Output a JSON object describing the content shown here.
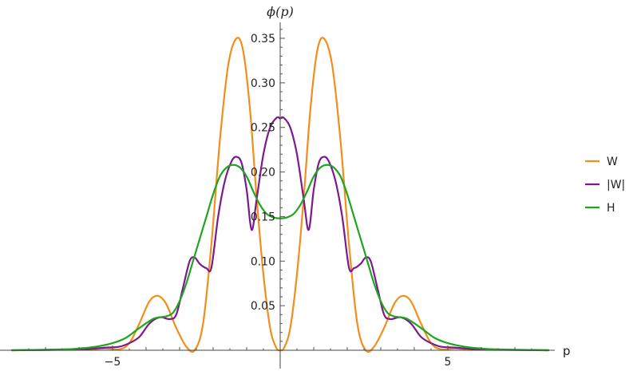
{
  "chart_data": {
    "type": "line",
    "title": "",
    "xlabel": "p",
    "ylabel": "ϕ(p)",
    "xlim": [
      -8,
      8
    ],
    "ylim": [
      0,
      0.37
    ],
    "x_major_ticks": [
      -5,
      5
    ],
    "x_major_tick_labels": [
      "−5",
      "5"
    ],
    "y_major_ticks": [
      0.05,
      0.1,
      0.15,
      0.2,
      0.25,
      0.3,
      0.35
    ],
    "y_major_tick_labels": [
      "0.05",
      "0.10",
      "0.15",
      "0.20",
      "0.25",
      "0.30",
      "0.35"
    ],
    "grid": false,
    "legend_position": "right",
    "series": [
      {
        "name": "W",
        "color": "#f28e1c",
        "points": [
          [
            -8,
            0
          ],
          [
            -6,
            0.0005
          ],
          [
            -5.2,
            0.002
          ],
          [
            -4.8,
            0.001
          ],
          [
            -4.5,
            0.008
          ],
          [
            -4.2,
            0.03
          ],
          [
            -3.9,
            0.055
          ],
          [
            -3.65,
            0.061
          ],
          [
            -3.4,
            0.052
          ],
          [
            -3.1,
            0.025
          ],
          [
            -2.8,
            0.004
          ],
          [
            -2.55,
            0.0
          ],
          [
            -2.3,
            0.03
          ],
          [
            -2.05,
            0.12
          ],
          [
            -1.8,
            0.235
          ],
          [
            -1.55,
            0.32
          ],
          [
            -1.3,
            0.35
          ],
          [
            -1.1,
            0.335
          ],
          [
            -0.9,
            0.27
          ],
          [
            -0.7,
            0.17
          ],
          [
            -0.5,
            0.085
          ],
          [
            -0.3,
            0.025
          ],
          [
            -0.12,
            0.003
          ],
          [
            0,
            0.0
          ],
          [
            0.12,
            0.003
          ],
          [
            0.3,
            0.025
          ],
          [
            0.5,
            0.085
          ],
          [
            0.7,
            0.17
          ],
          [
            0.9,
            0.27
          ],
          [
            1.1,
            0.335
          ],
          [
            1.3,
            0.35
          ],
          [
            1.55,
            0.32
          ],
          [
            1.8,
            0.235
          ],
          [
            2.05,
            0.12
          ],
          [
            2.3,
            0.03
          ],
          [
            2.55,
            0.0
          ],
          [
            2.8,
            0.004
          ],
          [
            3.1,
            0.025
          ],
          [
            3.4,
            0.052
          ],
          [
            3.65,
            0.061
          ],
          [
            3.9,
            0.055
          ],
          [
            4.2,
            0.03
          ],
          [
            4.5,
            0.008
          ],
          [
            4.8,
            0.001
          ],
          [
            5.2,
            0.002
          ],
          [
            6,
            0.0005
          ],
          [
            8,
            0
          ]
        ]
      },
      {
        "name": "|W|",
        "color": "#7b1a8c",
        "points": [
          [
            -8,
            0
          ],
          [
            -6,
            0.001
          ],
          [
            -5.2,
            0.003
          ],
          [
            -4.8,
            0.004
          ],
          [
            -4.5,
            0.008
          ],
          [
            -4.2,
            0.015
          ],
          [
            -3.9,
            0.03
          ],
          [
            -3.6,
            0.037
          ],
          [
            -3.3,
            0.035
          ],
          [
            -3.1,
            0.04
          ],
          [
            -2.9,
            0.07
          ],
          [
            -2.7,
            0.1
          ],
          [
            -2.55,
            0.104
          ],
          [
            -2.4,
            0.097
          ],
          [
            -2.2,
            0.092
          ],
          [
            -2.05,
            0.093
          ],
          [
            -1.85,
            0.15
          ],
          [
            -1.65,
            0.19
          ],
          [
            -1.45,
            0.212
          ],
          [
            -1.3,
            0.217
          ],
          [
            -1.15,
            0.21
          ],
          [
            -1.0,
            0.18
          ],
          [
            -0.85,
            0.135
          ],
          [
            -0.7,
            0.17
          ],
          [
            -0.5,
            0.22
          ],
          [
            -0.3,
            0.25
          ],
          [
            -0.1,
            0.261
          ],
          [
            0,
            0.26
          ],
          [
            0.1,
            0.261
          ],
          [
            0.3,
            0.25
          ],
          [
            0.5,
            0.22
          ],
          [
            0.7,
            0.17
          ],
          [
            0.85,
            0.135
          ],
          [
            1.0,
            0.18
          ],
          [
            1.15,
            0.21
          ],
          [
            1.3,
            0.217
          ],
          [
            1.45,
            0.212
          ],
          [
            1.65,
            0.19
          ],
          [
            1.85,
            0.15
          ],
          [
            2.05,
            0.093
          ],
          [
            2.2,
            0.092
          ],
          [
            2.4,
            0.097
          ],
          [
            2.55,
            0.104
          ],
          [
            2.7,
            0.1
          ],
          [
            2.9,
            0.07
          ],
          [
            3.1,
            0.04
          ],
          [
            3.3,
            0.035
          ],
          [
            3.6,
            0.037
          ],
          [
            3.9,
            0.03
          ],
          [
            4.2,
            0.015
          ],
          [
            4.5,
            0.008
          ],
          [
            4.8,
            0.004
          ],
          [
            5.2,
            0.003
          ],
          [
            6,
            0.001
          ],
          [
            8,
            0
          ]
        ]
      },
      {
        "name": "H",
        "color": "#1fa51f",
        "points": [
          [
            -8,
            0
          ],
          [
            -6.5,
            0.001
          ],
          [
            -6,
            0.002
          ],
          [
            -5.5,
            0.004
          ],
          [
            -5,
            0.008
          ],
          [
            -4.6,
            0.014
          ],
          [
            -4.2,
            0.025
          ],
          [
            -3.8,
            0.035
          ],
          [
            -3.6,
            0.037
          ],
          [
            -3.4,
            0.038
          ],
          [
            -3.2,
            0.042
          ],
          [
            -3.0,
            0.055
          ],
          [
            -2.8,
            0.075
          ],
          [
            -2.6,
            0.1
          ],
          [
            -2.4,
            0.125
          ],
          [
            -2.2,
            0.15
          ],
          [
            -2.0,
            0.175
          ],
          [
            -1.8,
            0.195
          ],
          [
            -1.6,
            0.205
          ],
          [
            -1.4,
            0.208
          ],
          [
            -1.2,
            0.205
          ],
          [
            -1.0,
            0.195
          ],
          [
            -0.8,
            0.178
          ],
          [
            -0.6,
            0.163
          ],
          [
            -0.4,
            0.153
          ],
          [
            -0.2,
            0.149
          ],
          [
            0,
            0.148
          ],
          [
            0.2,
            0.149
          ],
          [
            0.4,
            0.153
          ],
          [
            0.6,
            0.163
          ],
          [
            0.8,
            0.178
          ],
          [
            1.0,
            0.195
          ],
          [
            1.2,
            0.205
          ],
          [
            1.4,
            0.208
          ],
          [
            1.6,
            0.205
          ],
          [
            1.8,
            0.195
          ],
          [
            2.0,
            0.175
          ],
          [
            2.2,
            0.15
          ],
          [
            2.4,
            0.125
          ],
          [
            2.6,
            0.1
          ],
          [
            2.8,
            0.075
          ],
          [
            3.0,
            0.055
          ],
          [
            3.2,
            0.042
          ],
          [
            3.4,
            0.038
          ],
          [
            3.6,
            0.037
          ],
          [
            3.8,
            0.035
          ],
          [
            4.2,
            0.025
          ],
          [
            4.6,
            0.014
          ],
          [
            5,
            0.008
          ],
          [
            5.5,
            0.004
          ],
          [
            6,
            0.002
          ],
          [
            6.5,
            0.001
          ],
          [
            8,
            0
          ]
        ]
      }
    ]
  }
}
